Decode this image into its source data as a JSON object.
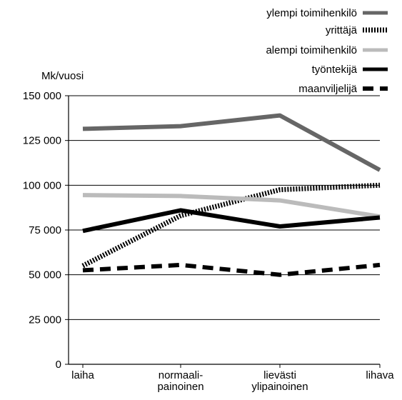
{
  "chart_data": {
    "type": "line",
    "title": "",
    "xlabel": "",
    "ylabel": "Mk/vuosi",
    "ylim": [
      0,
      150000
    ],
    "yticks": [
      0,
      25000,
      50000,
      75000,
      100000,
      125000,
      150000
    ],
    "ytick_labels": [
      "0",
      "25 000",
      "50 000",
      "75 000",
      "100 000",
      "125 000",
      "150 000"
    ],
    "categories": [
      [
        "laiha"
      ],
      [
        "normaali-",
        "painoinen"
      ],
      [
        "lievästi",
        "ylipainoinen"
      ],
      [
        "lihava"
      ]
    ],
    "grid": true,
    "legend_position": "top-right",
    "series": [
      {
        "name": "ylempi toimihenkilö",
        "values": [
          131500,
          133000,
          139000,
          108500
        ],
        "color": "#666666",
        "style": "solid-thick"
      },
      {
        "name": "yrittäjä",
        "values": [
          55000,
          83000,
          97500,
          100000
        ],
        "color": "#000000",
        "style": "dotted"
      },
      {
        "name": "alempi toimihenkilö",
        "values": [
          94500,
          94000,
          91500,
          82500
        ],
        "color": "#bbbbbb",
        "style": "solid-thick"
      },
      {
        "name": "työntekijä",
        "values": [
          74500,
          86000,
          77000,
          82000
        ],
        "color": "#000000",
        "style": "solid-thick"
      },
      {
        "name": "maanviljelijä",
        "values": [
          52500,
          55500,
          50000,
          55500
        ],
        "color": "#000000",
        "style": "dashed"
      }
    ]
  }
}
